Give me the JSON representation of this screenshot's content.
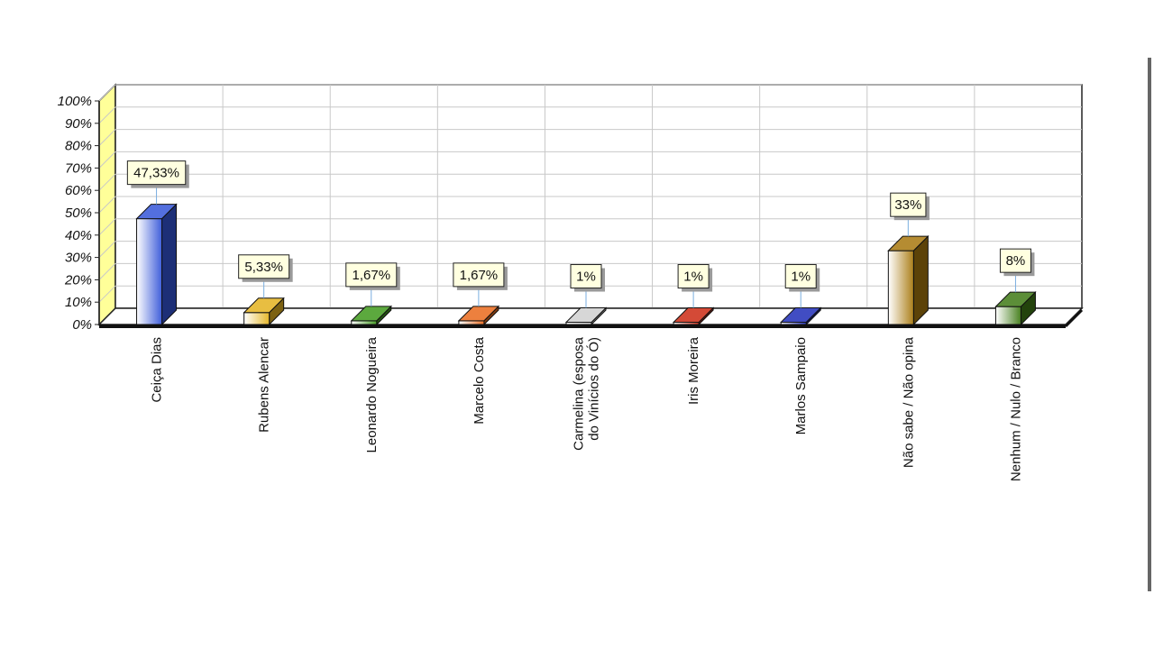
{
  "chart_data": {
    "type": "bar",
    "title": "",
    "xlabel": "",
    "ylabel": "",
    "ylim": [
      0,
      100
    ],
    "grid": true,
    "y_ticks": [
      "0%",
      "10%",
      "20%",
      "30%",
      "40%",
      "50%",
      "60%",
      "70%",
      "80%",
      "90%",
      "100%"
    ],
    "categories": [
      "Ceiça Dias",
      "Rubens Alencar",
      "Leonardo Nogueira",
      "Marcelo Costa",
      "Carmelina (esposa do Vinícios do Ó)",
      "Iris Moreira",
      "Marlos Sampaio",
      "Não sabe / Não opina",
      "Nenhum / Nulo / Branco"
    ],
    "values": [
      47.33,
      5.33,
      1.67,
      1.67,
      1,
      1,
      1,
      33,
      8
    ],
    "data_labels": [
      "47,33%",
      "5,33%",
      "1,67%",
      "1,67%",
      "1%",
      "1%",
      "1%",
      "33%",
      "8%"
    ],
    "bar_colors": [
      "#3555d8",
      "#e4b320",
      "#3f9a1c",
      "#ea6a1c",
      "#d0d0d0",
      "#cc2a14",
      "#1f2eb8",
      "#a8780e",
      "#3f7a15"
    ]
  }
}
